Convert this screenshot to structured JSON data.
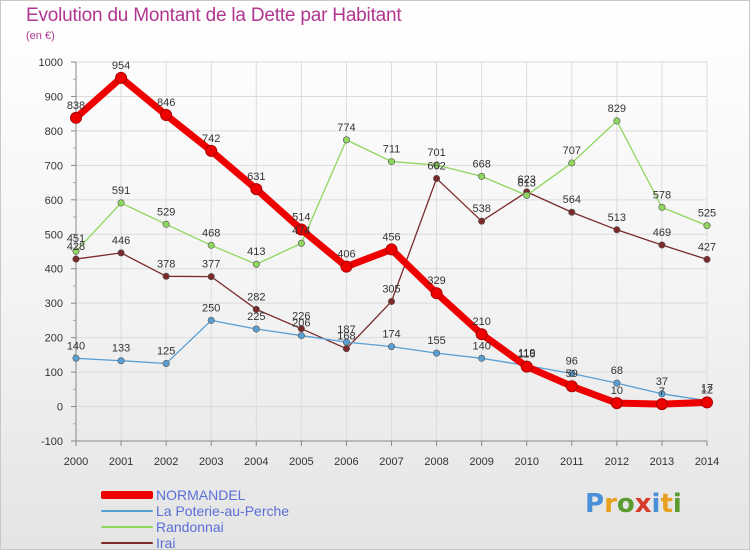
{
  "title": "Evolution du Montant de la Dette par Habitant",
  "subtitle": "(en €)",
  "logo": {
    "text": "Proxiti",
    "colors": [
      "#4a90d9",
      "#e8a020",
      "#5a9a2e",
      "#d83a2a",
      "#4a90d9",
      "#e8a020",
      "#5a9a2e"
    ]
  },
  "chart_data": {
    "type": "line",
    "title": "Evolution du Montant de la Dette par Habitant",
    "subtitle": "(en €)",
    "x": [
      "2000",
      "2001",
      "2002",
      "2003",
      "2004",
      "2005",
      "2006",
      "2007",
      "2008",
      "2009",
      "2010",
      "2011",
      "2012",
      "2013",
      "2014"
    ],
    "ylim": [
      -100,
      1000
    ],
    "yticks": [
      -100,
      0,
      100,
      200,
      300,
      400,
      500,
      600,
      700,
      800,
      900,
      1000
    ],
    "grid": true,
    "legend_position": "bottom-left",
    "series": [
      {
        "name": "NORMANDEL",
        "color": "#ee0000",
        "values": [
          838,
          954,
          846,
          742,
          631,
          514,
          406,
          456,
          329,
          210,
          116,
          59,
          10,
          7,
          12
        ]
      },
      {
        "name": "La Poterie-au-Perche",
        "color": "#5a9fd4",
        "values": [
          140,
          133,
          125,
          250,
          225,
          206,
          187,
          174,
          155,
          140,
          119,
          96,
          68,
          37,
          17
        ]
      },
      {
        "name": "Randonnai",
        "color": "#8fd65e",
        "values": [
          451,
          591,
          529,
          468,
          413,
          474,
          774,
          711,
          701,
          668,
          613,
          707,
          829,
          578,
          525
        ]
      },
      {
        "name": "Irai",
        "color": "#7a2a2a",
        "values": [
          428,
          446,
          378,
          377,
          282,
          226,
          168,
          305,
          662,
          538,
          623,
          564,
          513,
          469,
          427
        ]
      }
    ]
  }
}
